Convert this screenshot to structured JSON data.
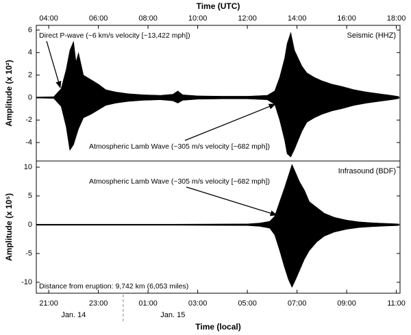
{
  "chart_data": [
    {
      "type": "area",
      "x_title": "Time (UTC)",
      "xlim": [
        3.5,
        18.15
      ],
      "xticks": [
        {
          "value": 4,
          "label": "04:00"
        },
        {
          "value": 6,
          "label": "06:00"
        },
        {
          "value": 8,
          "label": "08:00"
        },
        {
          "value": 10,
          "label": "10:00"
        },
        {
          "value": 12,
          "label": "12:00"
        },
        {
          "value": 14,
          "label": "14:00"
        },
        {
          "value": 16,
          "label": "16:00"
        },
        {
          "value": 18,
          "label": "18:00"
        }
      ],
      "ylabel": "Amplitude (x 10²)",
      "ylim": [
        -5.64,
        6.42
      ],
      "yticks": [
        -4,
        -2,
        0,
        2,
        4,
        6
      ],
      "annotations": [
        "Direct P-wave (~6 km/s velocity [~13,422 mph])",
        "Atmospheric Lamb Wave (~305 m/s velocity [~682 mph])"
      ],
      "series": [
        {
          "name": "Seismic (HHZ)",
          "color": "#000000",
          "x": [
            3.5,
            4.2,
            4.5,
            4.7,
            4.85,
            5.0,
            5.1,
            5.2,
            5.4,
            5.7,
            6.0,
            6.3,
            6.7,
            7.2,
            7.8,
            8.5,
            9.0,
            9.2,
            9.4,
            10,
            11,
            12,
            12.8,
            13.1,
            13.3,
            13.5,
            13.6,
            13.75,
            13.9,
            14.05,
            14.2,
            14.4,
            14.7,
            15.0,
            15.4,
            15.8,
            16.3,
            16.8,
            17.3,
            17.8,
            18.1
          ],
          "upper": [
            0.05,
            0.08,
            0.8,
            2.5,
            4.2,
            5.0,
            3.2,
            4.0,
            2.0,
            1.6,
            1.2,
            0.7,
            0.5,
            0.35,
            0.25,
            0.2,
            0.3,
            0.6,
            0.25,
            0.15,
            0.12,
            0.12,
            0.2,
            0.6,
            1.8,
            3.5,
            4.8,
            5.8,
            4.2,
            3.5,
            2.8,
            2.2,
            1.8,
            1.5,
            1.2,
            1.0,
            0.7,
            0.5,
            0.35,
            0.2,
            0.1
          ],
          "lower": [
            -0.05,
            -0.08,
            -0.8,
            -2.6,
            -4.7,
            -4.2,
            -3.5,
            -2.8,
            -1.8,
            -1.5,
            -1.1,
            -0.7,
            -0.5,
            -0.35,
            -0.25,
            -0.2,
            -0.3,
            -0.5,
            -0.25,
            -0.15,
            -0.12,
            -0.12,
            -0.2,
            -0.6,
            -2.0,
            -3.8,
            -5.0,
            -5.3,
            -4.6,
            -3.8,
            -3.0,
            -2.2,
            -1.8,
            -1.5,
            -1.2,
            -1.0,
            -0.7,
            -0.5,
            -0.35,
            -0.2,
            -0.1
          ]
        }
      ]
    },
    {
      "type": "area",
      "x_title": "Time (local)",
      "xlim": [
        3.5,
        18.15
      ],
      "xticks": [
        {
          "value": 4,
          "label": "21:00"
        },
        {
          "value": 6,
          "label": "23:00"
        },
        {
          "value": 8,
          "label": "01:00"
        },
        {
          "value": 10,
          "label": "03:00"
        },
        {
          "value": 12,
          "label": "05:00"
        },
        {
          "value": 14,
          "label": "07:00"
        },
        {
          "value": 16,
          "label": "09:00"
        },
        {
          "value": 18,
          "label": "11:00"
        }
      ],
      "dates": [
        {
          "value": 5,
          "label": "Jan. 14"
        },
        {
          "value": 9,
          "label": "Jan. 15"
        }
      ],
      "date_divider": 7,
      "ylabel": "Amplitude (x 10⁵)",
      "ylim": [
        -11.9,
        11.07
      ],
      "yticks": [
        -10,
        -5,
        0,
        5,
        10
      ],
      "annotations": [
        "Atmospheric Lamb Wave (~305 m/s velocity [~682 mph])"
      ],
      "note": "Distance from eruption: 9,742 km (6,053 miles)",
      "series": [
        {
          "name": "Infrasound (BDF)",
          "color": "#000000",
          "x": [
            3.5,
            6,
            9,
            12,
            12.5,
            12.9,
            13.1,
            13.3,
            13.5,
            13.65,
            13.8,
            13.95,
            14.1,
            14.3,
            14.5,
            14.8,
            15.1,
            15.5,
            16,
            16.5,
            17,
            17.5,
            18.1
          ],
          "upper": [
            0.1,
            0.1,
            0.1,
            0.15,
            0.3,
            0.6,
            1.5,
            4.0,
            6.5,
            8.5,
            10.5,
            9.0,
            7.5,
            6.0,
            4.0,
            3.0,
            2.0,
            1.3,
            0.8,
            0.5,
            0.35,
            0.25,
            0.15
          ],
          "lower": [
            -0.1,
            -0.1,
            -0.1,
            -0.15,
            -0.3,
            -0.6,
            -1.8,
            -4.5,
            -7.5,
            -9.5,
            -10.9,
            -9.5,
            -8.0,
            -6.0,
            -4.5,
            -3.0,
            -2.0,
            -1.3,
            -0.8,
            -0.5,
            -0.35,
            -0.25,
            -0.15
          ]
        }
      ]
    }
  ]
}
